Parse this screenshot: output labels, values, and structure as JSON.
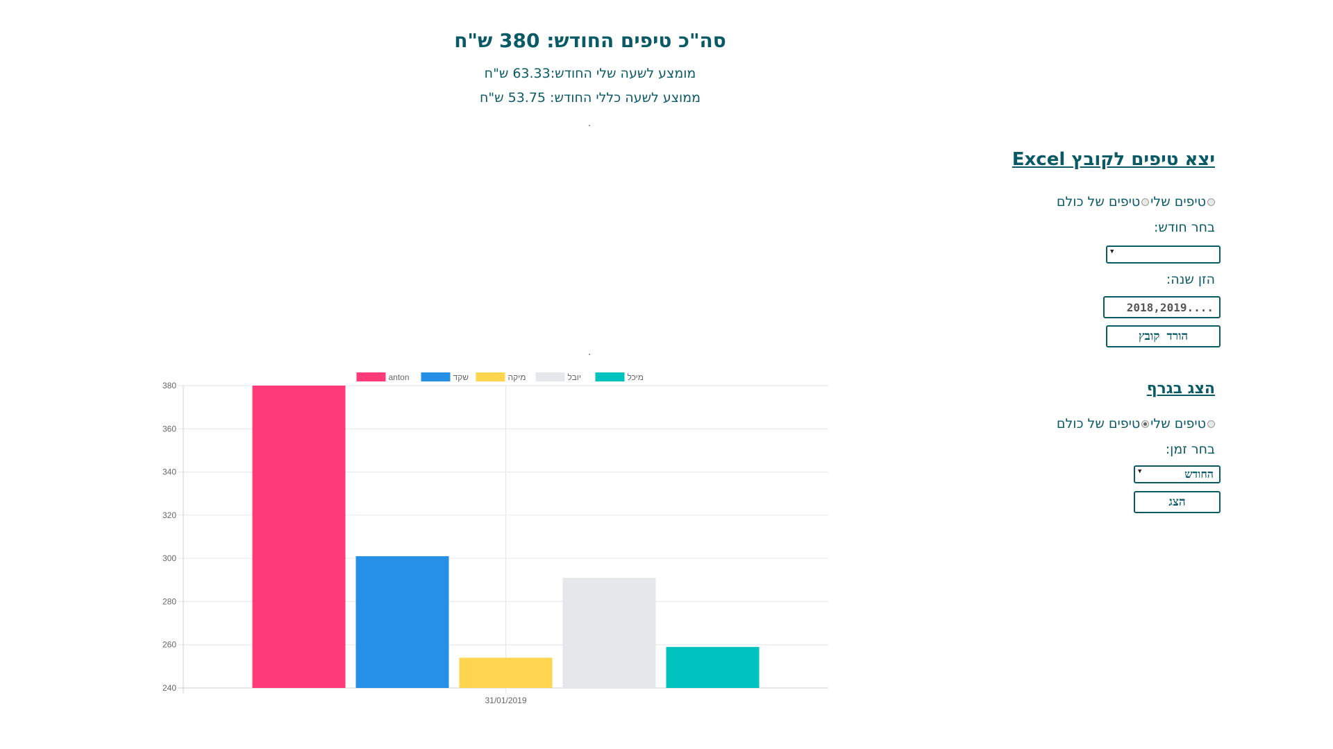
{
  "header": {
    "title": "סה\"כ טיפים החודש: 380 ש\"ח",
    "my_hourly_avg": "מומצע לשעה שלי החודש:63.33 ש\"ח",
    "overall_hourly_avg": "ממוצע לשעה כללי החודש: 53.75 ש\"ח"
  },
  "export_panel": {
    "title": "יצא טיפים לקובץ Excel",
    "radio_mine_label": "טיפים שלי",
    "radio_all_label": "טיפים של כולם",
    "month_label": "בחר חודש:",
    "month_value": "",
    "year_label": "הזן שנה:",
    "year_placeholder": "2018,2019....",
    "download_button": "הורד קובץ"
  },
  "graph_panel": {
    "title": "הצג בגרף",
    "radio_mine_label": "טיפים שלי",
    "radio_all_label": "טיפים של כולם",
    "time_label": "בחר זמן:",
    "time_value": "החודש",
    "show_button": "הצג"
  },
  "colors": {
    "accent": "#0a5a66"
  },
  "chart_data": {
    "type": "bar",
    "categories": [
      "31/01/2019"
    ],
    "series": [
      {
        "name": "anton",
        "values": [
          380
        ],
        "color": "#ff3a78"
      },
      {
        "name": "שקד",
        "values": [
          301
        ],
        "color": "#2590e6"
      },
      {
        "name": "מיקה",
        "values": [
          254
        ],
        "color": "#ffd54f"
      },
      {
        "name": "יובל",
        "values": [
          291
        ],
        "color": "#e5e7ea"
      },
      {
        "name": "מיכל",
        "values": [
          259
        ],
        "color": "#00c2bf"
      }
    ],
    "ylim": [
      240,
      380
    ],
    "yticks": [
      "240",
      "260",
      "280",
      "300",
      "320",
      "340",
      "360",
      "380"
    ],
    "grid": true,
    "legend": "top"
  }
}
